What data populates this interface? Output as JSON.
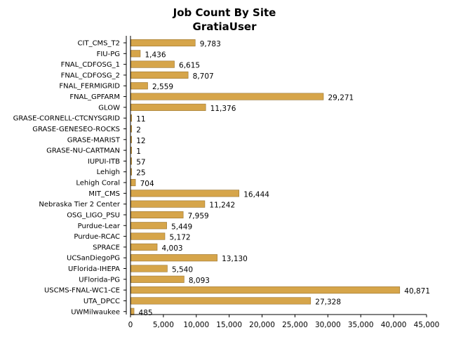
{
  "chart_data": {
    "type": "bar",
    "orientation": "horizontal",
    "title": "Job Count By Site",
    "subtitle": "GratiaUser",
    "xlabel": "",
    "ylabel": "",
    "xlim": [
      0,
      45000
    ],
    "x_ticks": [
      0,
      5000,
      10000,
      15000,
      20000,
      25000,
      30000,
      35000,
      40000,
      45000
    ],
    "x_tick_labels": [
      "0",
      "5,000",
      "10,000",
      "15,000",
      "20,000",
      "25,000",
      "30,000",
      "35,000",
      "40,000",
      "45,000"
    ],
    "grid": false,
    "legend": "none",
    "bar_color": "#d6a54a",
    "categories": [
      "CIT_CMS_T2",
      "FIU-PG",
      "FNAL_CDFOSG_1",
      "FNAL_CDFOSG_2",
      "FNAL_FERMIGRID",
      "FNAL_GPFARM",
      "GLOW",
      "GRASE-CORNELL-CTCNYSGRID",
      "GRASE-GENESEO-ROCKS",
      "GRASE-MARIST",
      "GRASE-NU-CARTMAN",
      "IUPUI-ITB",
      "Lehigh",
      "Lehigh Coral",
      "MIT_CMS",
      "Nebraska Tier 2 Center",
      "OSG_LIGO_PSU",
      "Purdue-Lear",
      "Purdue-RCAC",
      "SPRACE",
      "UCSanDiegoPG",
      "UFlorida-IHEPA",
      "UFlorida-PG",
      "USCMS-FNAL-WC1-CE",
      "UTA_DPCC",
      "UWMilwaukee"
    ],
    "values": [
      9783,
      1436,
      6615,
      8707,
      2559,
      29271,
      11376,
      11,
      2,
      12,
      1,
      57,
      25,
      704,
      16444,
      11242,
      7959,
      5449,
      5172,
      4003,
      13130,
      5540,
      8093,
      40871,
      27328,
      485
    ],
    "value_labels": [
      "9,783",
      "1,436",
      "6,615",
      "8,707",
      "2,559",
      "29,271",
      "11,376",
      "11",
      "2",
      "12",
      "1",
      "57",
      "25",
      "704",
      "16,444",
      "11,242",
      "7,959",
      "5,449",
      "5,172",
      "4,003",
      "13,130",
      "5,540",
      "8,093",
      "40,871",
      "27,328",
      "485"
    ]
  }
}
